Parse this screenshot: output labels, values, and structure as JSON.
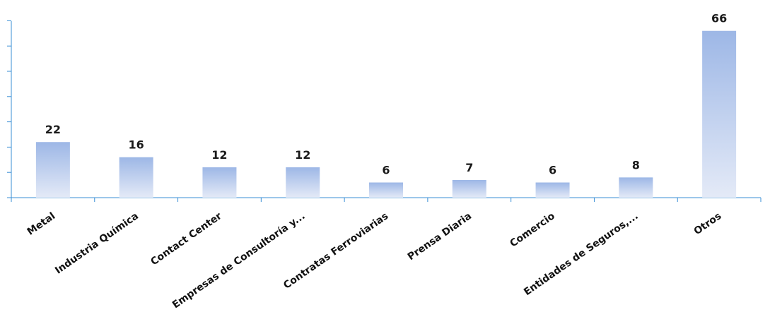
{
  "chart_data": {
    "type": "bar",
    "categories": [
      "Metal",
      "Industria Química",
      "Contact Center",
      "Empresas de Consultoría y...",
      "Contratas Ferroviarias",
      "Prensa Diaria",
      "Comercio",
      "Entidades de Seguros,...",
      "Otros"
    ],
    "values": [
      22,
      16,
      12,
      12,
      6,
      7,
      6,
      8,
      66
    ],
    "data_labels": [
      "22",
      "16",
      "12",
      "12",
      "6",
      "7",
      "6",
      "8",
      "66"
    ],
    "ylim": [
      0,
      70
    ],
    "grid": false,
    "legend": "none",
    "colors": {
      "bar_top": "#9db7e6",
      "bar_bottom": "#e4eaf7",
      "axis": "#3a8fd6"
    }
  }
}
